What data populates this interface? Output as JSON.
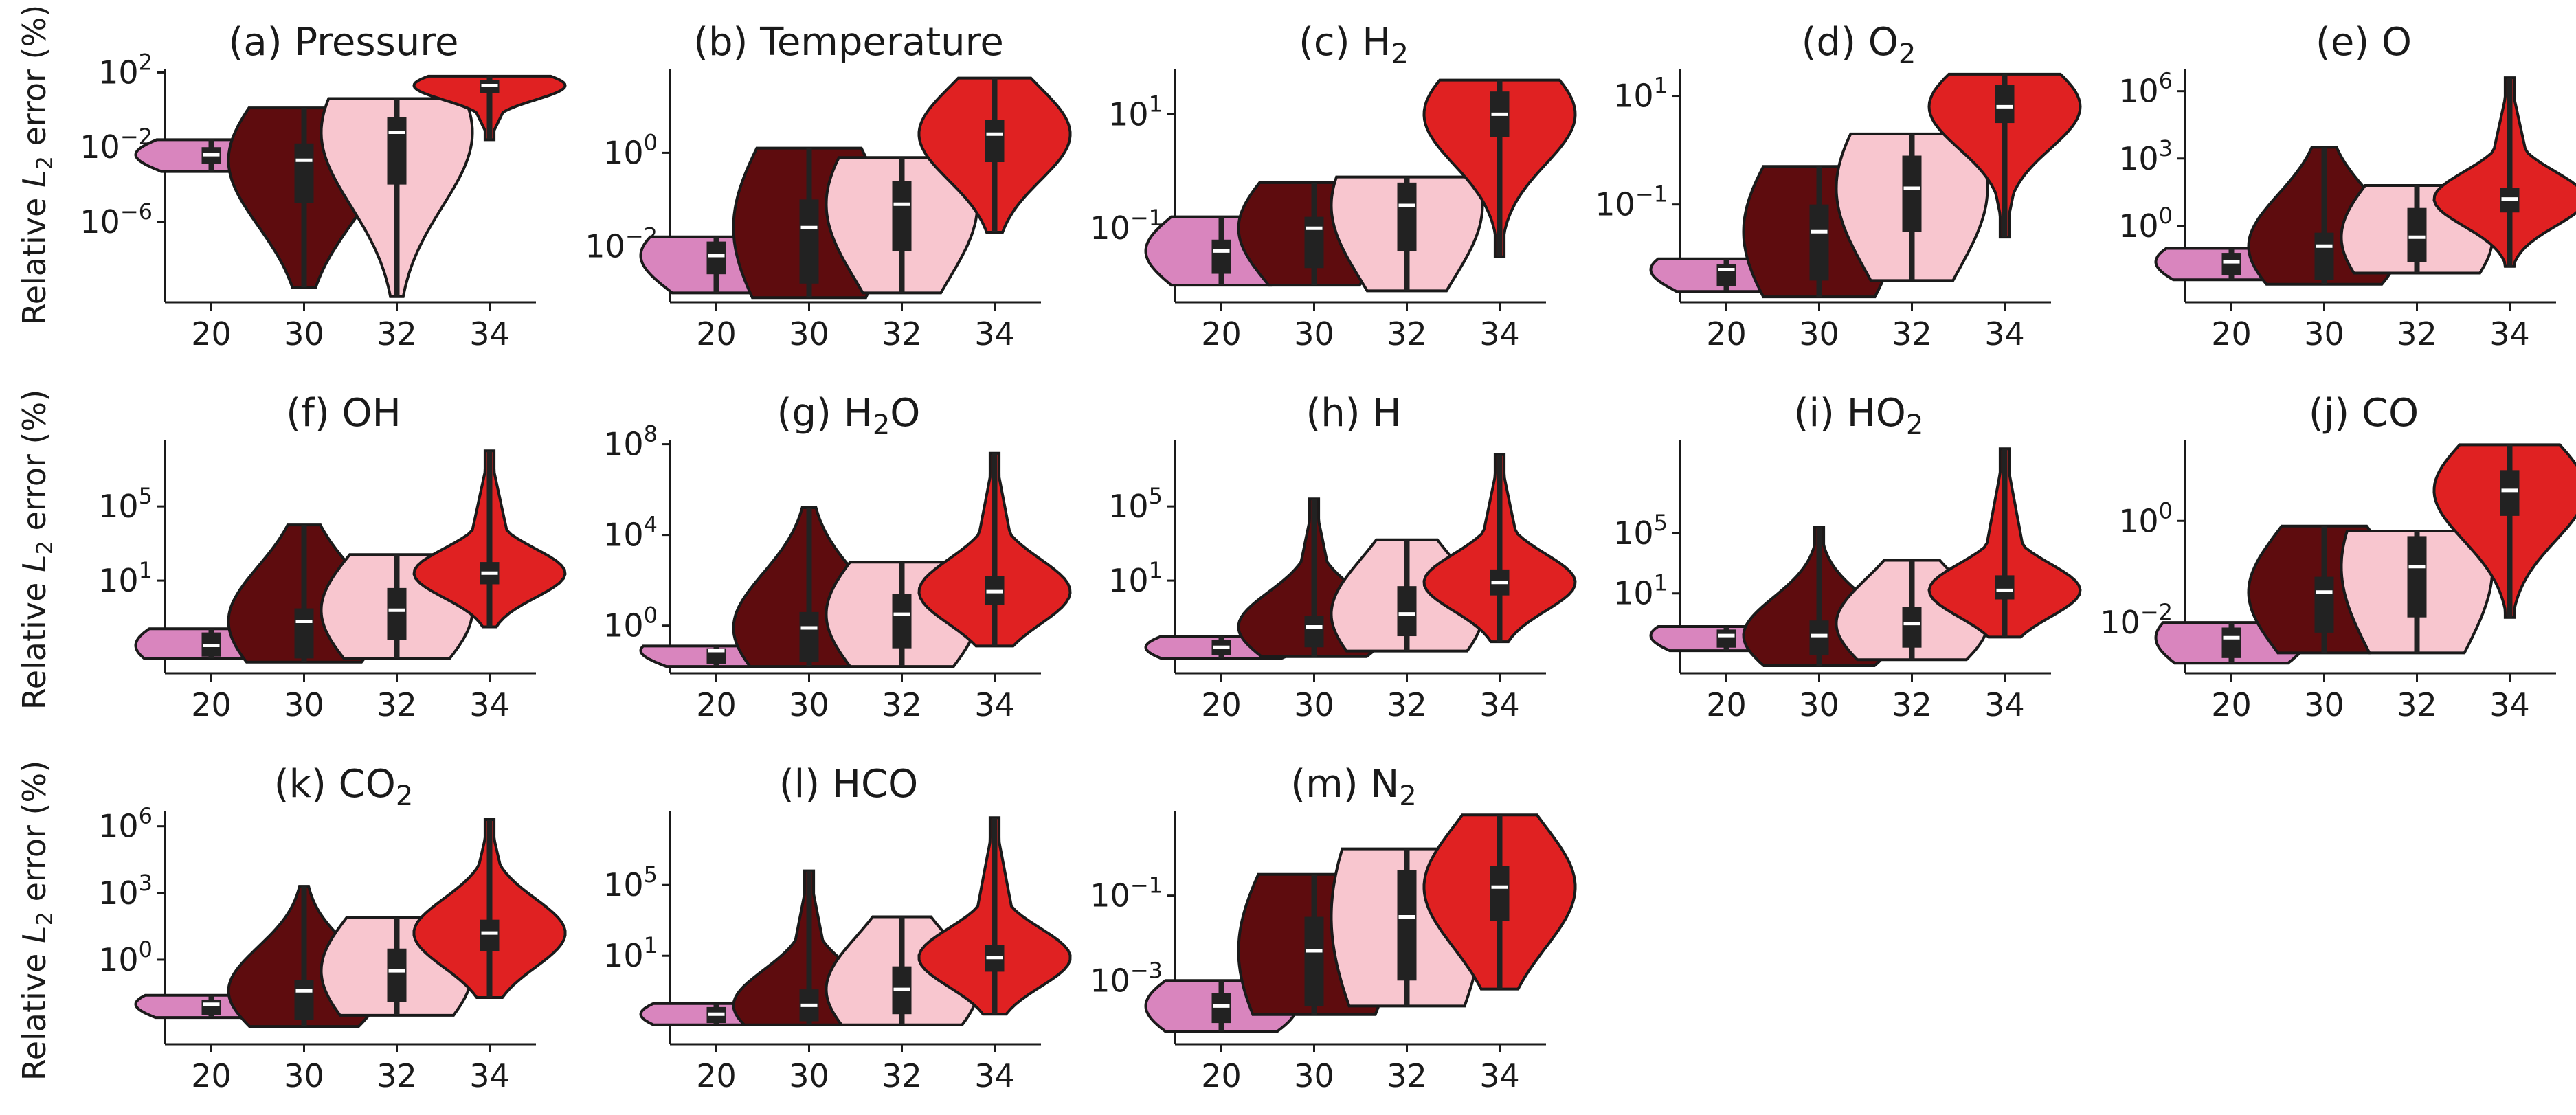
{
  "figure": {
    "ylabel_prefix": "Relative ",
    "ylabel_var": "L",
    "ylabel_sub": "2",
    "ylabel_suffix": " error (%)"
  },
  "colors": {
    "20": "#d985be",
    "30": "#5e0c0e",
    "32": "#f8c6cf",
    "34": "#e02122",
    "box": "#222222",
    "median": "#ffffff",
    "outline": "#1a1a1a"
  },
  "chart_data": [
    {
      "type": "violin",
      "label": "(a) Pressure",
      "sub": "",
      "tail": "",
      "scale": "log",
      "categories": [
        "20",
        "30",
        "32",
        "34"
      ],
      "ylim": [
        -10.3,
        2.2
      ],
      "yticks": [
        {
          "v": 2,
          "t": "10",
          "e": "2"
        },
        {
          "v": -2,
          "t": "10",
          "e": "−2"
        },
        {
          "v": -6,
          "t": "10",
          "e": "−6"
        }
      ],
      "violins": [
        {
          "min": -3.3,
          "max": -1.6,
          "q1": -2.9,
          "med": -2.4,
          "q3": -2.0,
          "wmin": -3.3,
          "wmax": -1.6
        },
        {
          "min": -9.5,
          "max": 0.1,
          "q1": -5.0,
          "med": -2.7,
          "q3": -1.8,
          "wmin": -9.5,
          "wmax": 0.1
        },
        {
          "min": -10.0,
          "max": 0.6,
          "q1": -4.0,
          "med": -1.2,
          "q3": -0.4,
          "wmin": -10.0,
          "wmax": 0.6
        },
        {
          "min": -1.6,
          "max": 1.8,
          "q1": 0.9,
          "med": 1.3,
          "q3": 1.6,
          "wmin": -1.6,
          "wmax": 1.8
        }
      ]
    },
    {
      "type": "violin",
      "label": "(b) Temperature",
      "sub": "",
      "tail": "",
      "scale": "log",
      "categories": [
        "20",
        "30",
        "32",
        "34"
      ],
      "ylim": [
        -3.2,
        1.8
      ],
      "yticks": [
        {
          "v": 0,
          "t": "10",
          "e": "0"
        },
        {
          "v": -2,
          "t": "10",
          "e": "−2"
        }
      ],
      "violins": [
        {
          "min": -3.0,
          "max": -1.8,
          "q1": -2.6,
          "med": -2.2,
          "q3": -1.9,
          "wmin": -3.0,
          "wmax": -1.8
        },
        {
          "min": -3.1,
          "max": 0.1,
          "q1": -2.8,
          "med": -1.6,
          "q3": -1.0,
          "wmin": -3.1,
          "wmax": 0.1
        },
        {
          "min": -3.0,
          "max": -0.1,
          "q1": -2.1,
          "med": -1.1,
          "q3": -0.6,
          "wmin": -3.0,
          "wmax": -0.1
        },
        {
          "min": -1.7,
          "max": 1.6,
          "q1": -0.2,
          "med": 0.4,
          "q3": 0.7,
          "wmin": -1.7,
          "wmax": 1.6
        }
      ]
    },
    {
      "type": "violin",
      "label": "(c) H",
      "sub": "2",
      "tail": "",
      "scale": "log",
      "categories": [
        "20",
        "30",
        "32",
        "34"
      ],
      "ylim": [
        -2.3,
        1.8
      ],
      "yticks": [
        {
          "v": 1,
          "t": "10",
          "e": "1"
        },
        {
          "v": -1,
          "t": "10",
          "e": "−1"
        }
      ],
      "violins": [
        {
          "min": -2.0,
          "max": -0.8,
          "q1": -1.8,
          "med": -1.4,
          "q3": -1.2,
          "wmin": -2.0,
          "wmax": -0.8
        },
        {
          "min": -2.0,
          "max": -0.2,
          "q1": -1.7,
          "med": -1.0,
          "q3": -0.8,
          "wmin": -2.0,
          "wmax": -0.2
        },
        {
          "min": -2.1,
          "max": -0.1,
          "q1": -1.4,
          "med": -0.6,
          "q3": -0.2,
          "wmin": -2.1,
          "wmax": -0.1
        },
        {
          "min": -1.5,
          "max": 1.6,
          "q1": 0.6,
          "med": 1.0,
          "q3": 1.4,
          "wmin": -1.5,
          "wmax": 1.6
        }
      ]
    },
    {
      "type": "violin",
      "label": "(d) O",
      "sub": "2",
      "tail": "",
      "scale": "log",
      "categories": [
        "20",
        "30",
        "32",
        "34"
      ],
      "ylim": [
        -2.8,
        1.5
      ],
      "yticks": [
        {
          "v": 1,
          "t": "10",
          "e": "1"
        },
        {
          "v": -1,
          "t": "10",
          "e": "−1"
        }
      ],
      "violins": [
        {
          "min": -2.6,
          "max": -2.0,
          "q1": -2.5,
          "med": -2.2,
          "q3": -2.1,
          "wmin": -2.6,
          "wmax": -2.0
        },
        {
          "min": -2.7,
          "max": -0.3,
          "q1": -2.4,
          "med": -1.5,
          "q3": -1.0,
          "wmin": -2.7,
          "wmax": -0.3
        },
        {
          "min": -2.4,
          "max": 0.3,
          "q1": -1.5,
          "med": -0.7,
          "q3": -0.1,
          "wmin": -2.4,
          "wmax": 0.3
        },
        {
          "min": -1.6,
          "max": 1.4,
          "q1": 0.5,
          "med": 0.8,
          "q3": 1.2,
          "wmin": -1.6,
          "wmax": 1.4
        }
      ]
    },
    {
      "type": "violin",
      "label": "(e) O",
      "sub": "",
      "tail": "",
      "scale": "log",
      "categories": [
        "20",
        "30",
        "32",
        "34"
      ],
      "ylim": [
        -3.4,
        7.0
      ],
      "yticks": [
        {
          "v": 6,
          "t": "10",
          "e": "6"
        },
        {
          "v": 3,
          "t": "10",
          "e": "3"
        },
        {
          "v": 0,
          "t": "10",
          "e": "0"
        }
      ],
      "violins": [
        {
          "min": -2.4,
          "max": -1.0,
          "q1": -2.2,
          "med": -1.6,
          "q3": -1.2,
          "wmin": -2.4,
          "wmax": -1.0
        },
        {
          "min": -2.6,
          "max": 3.5,
          "q1": -2.4,
          "med": -0.9,
          "q3": -0.3,
          "wmin": -2.6,
          "wmax": 3.5
        },
        {
          "min": -2.1,
          "max": 1.8,
          "q1": -1.6,
          "med": -0.5,
          "q3": 0.8,
          "wmin": -2.1,
          "wmax": 1.8
        },
        {
          "min": -1.8,
          "max": 6.6,
          "q1": 0.6,
          "med": 1.2,
          "q3": 1.7,
          "wmin": -1.8,
          "wmax": 6.6
        }
      ]
    },
    {
      "type": "violin",
      "label": "(f) OH",
      "sub": "",
      "tail": "",
      "scale": "log",
      "categories": [
        "20",
        "30",
        "32",
        "34"
      ],
      "ylim": [
        -4.0,
        8.6
      ],
      "yticks": [
        {
          "v": 5,
          "t": "10",
          "e": "5"
        },
        {
          "v": 1,
          "t": "10",
          "e": "1"
        }
      ],
      "violins": [
        {
          "min": -3.2,
          "max": -1.6,
          "q1": -3.1,
          "med": -2.5,
          "q3": -1.8,
          "wmin": -3.2,
          "wmax": -1.6
        },
        {
          "min": -3.4,
          "max": 4.0,
          "q1": -3.2,
          "med": -1.2,
          "q3": -0.5,
          "wmin": -3.4,
          "wmax": 4.0
        },
        {
          "min": -3.2,
          "max": 2.4,
          "q1": -2.2,
          "med": -0.6,
          "q3": 0.6,
          "wmin": -3.2,
          "wmax": 2.4
        },
        {
          "min": -1.5,
          "max": 8.0,
          "q1": 0.8,
          "med": 1.4,
          "q3": 2.0,
          "wmin": -1.5,
          "wmax": 8.0
        }
      ]
    },
    {
      "type": "violin",
      "label": "(g) H",
      "sub": "2",
      "tail": "O",
      "scale": "log",
      "categories": [
        "20",
        "30",
        "32",
        "34"
      ],
      "ylim": [
        -2.1,
        8.2
      ],
      "yticks": [
        {
          "v": 8,
          "t": "10",
          "e": "8"
        },
        {
          "v": 4,
          "t": "10",
          "e": "4"
        },
        {
          "v": 0,
          "t": "10",
          "e": "0"
        }
      ],
      "violins": [
        {
          "min": -1.8,
          "max": -0.9,
          "q1": -1.7,
          "med": -1.1,
          "q3": -1.0,
          "wmin": -1.8,
          "wmax": -0.9
        },
        {
          "min": -1.8,
          "max": 5.2,
          "q1": -1.6,
          "med": -0.1,
          "q3": 0.6,
          "wmin": -1.8,
          "wmax": 5.2
        },
        {
          "min": -1.8,
          "max": 2.8,
          "q1": -1.0,
          "med": 0.5,
          "q3": 1.4,
          "wmin": -1.8,
          "wmax": 2.8
        },
        {
          "min": -0.9,
          "max": 7.6,
          "q1": 0.9,
          "med": 1.5,
          "q3": 2.2,
          "wmin": -0.9,
          "wmax": 7.6
        }
      ]
    },
    {
      "type": "violin",
      "label": "(h) H",
      "sub": "",
      "tail": "",
      "scale": "log",
      "categories": [
        "20",
        "30",
        "32",
        "34"
      ],
      "ylim": [
        -4.0,
        8.6
      ],
      "yticks": [
        {
          "v": 5,
          "t": "10",
          "e": "5"
        },
        {
          "v": 1,
          "t": "10",
          "e": "1"
        }
      ],
      "violins": [
        {
          "min": -3.2,
          "max": -2.0,
          "q1": -3.0,
          "med": -2.6,
          "q3": -2.2,
          "wmin": -3.2,
          "wmax": -2.0
        },
        {
          "min": -3.1,
          "max": 5.4,
          "q1": -2.6,
          "med": -1.5,
          "q3": -0.9,
          "wmin": -3.1,
          "wmax": 5.4
        },
        {
          "min": -2.8,
          "max": 3.2,
          "q1": -2.0,
          "med": -0.8,
          "q3": 0.7,
          "wmin": -2.8,
          "wmax": 3.2
        },
        {
          "min": -2.3,
          "max": 7.8,
          "q1": 0.2,
          "med": 0.9,
          "q3": 1.6,
          "wmin": -2.3,
          "wmax": 7.8
        }
      ]
    },
    {
      "type": "violin",
      "label": "(i) HO",
      "sub": "2",
      "tail": "",
      "scale": "log",
      "categories": [
        "20",
        "30",
        "32",
        "34"
      ],
      "ylim": [
        -4.3,
        11.2
      ],
      "yticks": [
        {
          "v": 5,
          "t": "10",
          "e": "5"
        },
        {
          "v": 1,
          "t": "10",
          "e": "1"
        }
      ],
      "violins": [
        {
          "min": -2.8,
          "max": -1.2,
          "q1": -2.6,
          "med": -1.8,
          "q3": -1.4,
          "wmin": -2.8,
          "wmax": -1.2
        },
        {
          "min": -3.8,
          "max": 5.4,
          "q1": -3.1,
          "med": -1.8,
          "q3": -0.8,
          "wmin": -3.8,
          "wmax": 5.4
        },
        {
          "min": -3.4,
          "max": 3.2,
          "q1": -2.6,
          "med": -1.0,
          "q3": 0.1,
          "wmin": -3.4,
          "wmax": 3.2
        },
        {
          "min": -1.9,
          "max": 10.6,
          "q1": 0.6,
          "med": 1.2,
          "q3": 2.2,
          "wmin": -1.9,
          "wmax": 10.6
        }
      ]
    },
    {
      "type": "violin",
      "label": "(j) CO",
      "sub": "",
      "tail": "",
      "scale": "log",
      "categories": [
        "20",
        "30",
        "32",
        "34"
      ],
      "ylim": [
        -3.0,
        1.6
      ],
      "yticks": [
        {
          "v": 0,
          "t": "10",
          "e": "0"
        },
        {
          "v": -2,
          "t": "10",
          "e": "−2"
        }
      ],
      "violins": [
        {
          "min": -2.8,
          "max": -2.0,
          "q1": -2.7,
          "med": -2.3,
          "q3": -2.1,
          "wmin": -2.8,
          "wmax": -2.0
        },
        {
          "min": -2.6,
          "max": -0.1,
          "q1": -2.2,
          "med": -1.4,
          "q3": -1.1,
          "wmin": -2.6,
          "wmax": -0.1
        },
        {
          "min": -2.6,
          "max": -0.2,
          "q1": -1.9,
          "med": -0.9,
          "q3": -0.3,
          "wmin": -2.6,
          "wmax": -0.2
        },
        {
          "min": -1.9,
          "max": 1.5,
          "q1": 0.1,
          "med": 0.6,
          "q3": 1.0,
          "wmin": -1.9,
          "wmax": 1.5
        }
      ]
    },
    {
      "type": "violin",
      "label": "(k) CO",
      "sub": "2",
      "tail": "",
      "scale": "log",
      "categories": [
        "20",
        "30",
        "32",
        "34"
      ],
      "ylim": [
        -3.8,
        6.7
      ],
      "yticks": [
        {
          "v": 6,
          "t": "10",
          "e": "6"
        },
        {
          "v": 3,
          "t": "10",
          "e": "3"
        },
        {
          "v": 0,
          "t": "10",
          "e": "0"
        }
      ],
      "violins": [
        {
          "min": -2.6,
          "max": -1.6,
          "q1": -2.5,
          "med": -2.0,
          "q3": -1.8,
          "wmin": -2.6,
          "wmax": -1.6
        },
        {
          "min": -3.0,
          "max": 3.3,
          "q1": -2.7,
          "med": -1.4,
          "q3": -0.9,
          "wmin": -3.0,
          "wmax": 3.3
        },
        {
          "min": -2.5,
          "max": 1.9,
          "q1": -1.9,
          "med": -0.5,
          "q3": 0.5,
          "wmin": -2.5,
          "wmax": 1.9
        },
        {
          "min": -1.7,
          "max": 6.3,
          "q1": 0.4,
          "med": 1.2,
          "q3": 1.8,
          "wmin": -1.7,
          "wmax": 6.3
        }
      ]
    },
    {
      "type": "violin",
      "label": "(l) HCO",
      "sub": "",
      "tail": "",
      "scale": "log",
      "categories": [
        "20",
        "30",
        "32",
        "34"
      ],
      "ylim": [
        -4.0,
        9.2
      ],
      "yticks": [
        {
          "v": 5,
          "t": "10",
          "e": "5"
        },
        {
          "v": 1,
          "t": "10",
          "e": "1"
        }
      ],
      "violins": [
        {
          "min": -2.9,
          "max": -1.7,
          "q1": -2.8,
          "med": -2.3,
          "q3": -1.9,
          "wmin": -2.9,
          "wmax": -1.7
        },
        {
          "min": -2.9,
          "max": 5.8,
          "q1": -2.7,
          "med": -1.8,
          "q3": -0.9,
          "wmin": -2.9,
          "wmax": 5.8
        },
        {
          "min": -2.9,
          "max": 3.2,
          "q1": -2.3,
          "med": -0.9,
          "q3": 0.4,
          "wmin": -2.9,
          "wmax": 3.2
        },
        {
          "min": -2.3,
          "max": 8.8,
          "q1": 0.1,
          "med": 0.9,
          "q3": 1.6,
          "wmin": -2.3,
          "wmax": 8.8
        }
      ]
    },
    {
      "type": "violin",
      "label": "(m) N",
      "sub": "2",
      "tail": "",
      "scale": "log",
      "categories": [
        "20",
        "30",
        "32",
        "34"
      ],
      "ylim": [
        -4.5,
        1.0
      ],
      "yticks": [
        {
          "v": -1,
          "t": "10",
          "e": "−1"
        },
        {
          "v": -3,
          "t": "10",
          "e": "−3"
        }
      ],
      "violins": [
        {
          "min": -4.2,
          "max": -3.0,
          "q1": -4.0,
          "med": -3.6,
          "q3": -3.3,
          "wmin": -4.2,
          "wmax": -3.0
        },
        {
          "min": -3.8,
          "max": -0.5,
          "q1": -3.6,
          "med": -2.3,
          "q3": -1.5,
          "wmin": -3.8,
          "wmax": -0.5
        },
        {
          "min": -3.6,
          "max": 0.1,
          "q1": -3.0,
          "med": -1.5,
          "q3": -0.4,
          "wmin": -3.6,
          "wmax": 0.1
        },
        {
          "min": -3.2,
          "max": 0.9,
          "q1": -1.6,
          "med": -0.8,
          "q3": -0.3,
          "wmin": -3.2,
          "wmax": 0.9
        }
      ]
    }
  ]
}
